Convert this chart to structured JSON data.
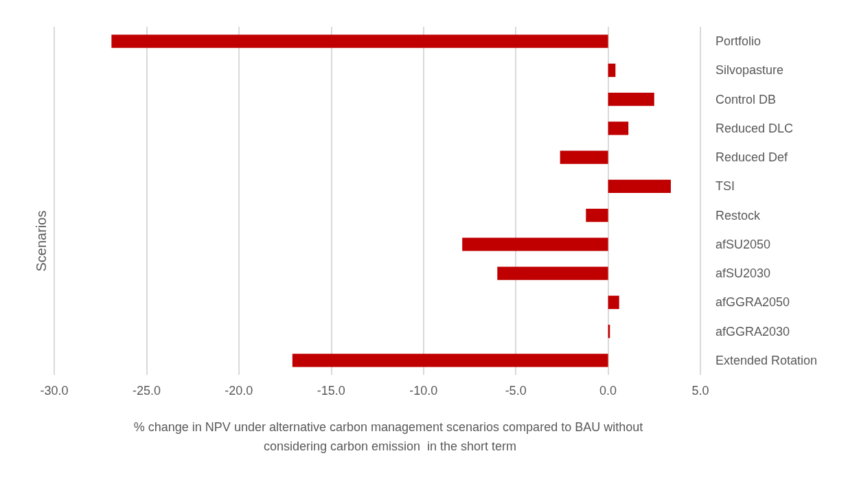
{
  "chart_data": {
    "type": "bar",
    "orientation": "horizontal",
    "xlabel": "% change in NPV under alternative carbon management scenarios compared to BAU without considering carbon emission  in the short term",
    "ylabel": "Scenarios",
    "categories": [
      "Portfolio",
      "Silvopasture",
      "Control DB",
      "Reduced DLC",
      "Reduced Def",
      "TSI",
      "Restock",
      "afSU2050",
      "afSU2030",
      "afGGRA2050",
      "afGGRA2030",
      "Extended Rotation"
    ],
    "values": [
      -26.9,
      0.4,
      2.5,
      1.1,
      -2.6,
      3.4,
      -1.2,
      -7.9,
      -6.0,
      0.6,
      0.1,
      -17.1
    ],
    "color": "#c00000",
    "xlim": [
      -30,
      5
    ],
    "xticks": [
      {
        "value": -30,
        "label": "-30.0"
      },
      {
        "value": -25,
        "label": "-25.0"
      },
      {
        "value": -20,
        "label": "-20.0"
      },
      {
        "value": -15,
        "label": "-15.0"
      },
      {
        "value": -10,
        "label": "-10.0"
      },
      {
        "value": -5,
        "label": "-5.0"
      },
      {
        "value": 0,
        "label": "0.0"
      },
      {
        "value": 5,
        "label": "5.0"
      }
    ],
    "grid": "x"
  }
}
